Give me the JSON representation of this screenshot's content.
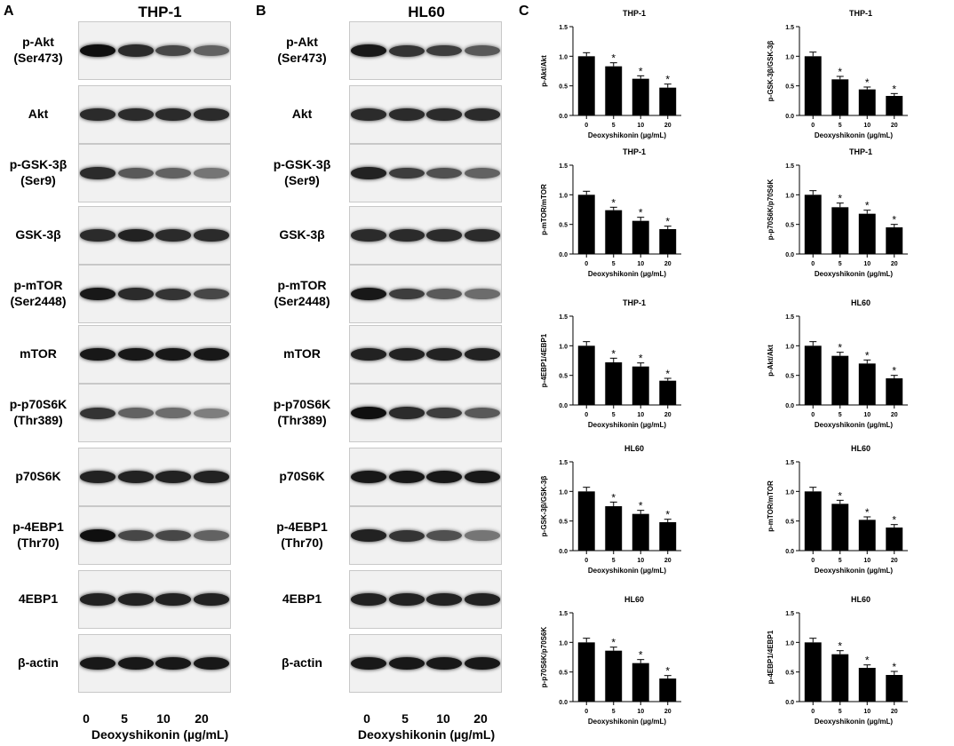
{
  "panels": {
    "a": {
      "letter": "A",
      "title": "THP-1"
    },
    "b": {
      "letter": "B",
      "title": "HL60"
    },
    "c": {
      "letter": "C"
    }
  },
  "blots": {
    "lanes": [
      "0",
      "5",
      "10",
      "20"
    ],
    "xlabel": "Deoxyshikonin (µg/mL)",
    "thp1": [
      {
        "label": "p-Akt\n(Ser473)",
        "intensity": [
          1.0,
          0.85,
          0.7,
          0.55
        ]
      },
      {
        "label": "Akt",
        "intensity": [
          0.85,
          0.85,
          0.85,
          0.85
        ]
      },
      {
        "label": "p-GSK-3β\n(Ser9)",
        "intensity": [
          0.85,
          0.6,
          0.55,
          0.45
        ]
      },
      {
        "label": "GSK-3β",
        "intensity": [
          0.85,
          0.9,
          0.85,
          0.85
        ]
      },
      {
        "label": "p-mTOR\n(Ser2448)",
        "intensity": [
          0.95,
          0.85,
          0.8,
          0.7
        ]
      },
      {
        "label": "mTOR",
        "intensity": [
          0.95,
          0.95,
          0.95,
          0.95
        ]
      },
      {
        "label": "p-p70S6K\n(Thr389)",
        "intensity": [
          0.8,
          0.55,
          0.5,
          0.4
        ]
      },
      {
        "label": "p70S6K",
        "intensity": [
          0.9,
          0.9,
          0.9,
          0.9
        ]
      },
      {
        "label": "p-4EBP1\n(Thr70)",
        "intensity": [
          1.0,
          0.7,
          0.7,
          0.55
        ]
      },
      {
        "label": "4EBP1",
        "intensity": [
          0.9,
          0.9,
          0.9,
          0.9
        ]
      },
      {
        "label": "β-actin",
        "intensity": [
          0.95,
          0.95,
          0.95,
          0.95
        ]
      }
    ],
    "hl60": [
      {
        "label": "p-Akt\n(Ser473)",
        "intensity": [
          0.95,
          0.8,
          0.75,
          0.6
        ]
      },
      {
        "label": "Akt",
        "intensity": [
          0.85,
          0.85,
          0.85,
          0.85
        ]
      },
      {
        "label": "p-GSK-3β\n(Ser9)",
        "intensity": [
          0.9,
          0.75,
          0.65,
          0.55
        ]
      },
      {
        "label": "GSK-3β",
        "intensity": [
          0.85,
          0.85,
          0.85,
          0.85
        ]
      },
      {
        "label": "p-mTOR\n(Ser2448)",
        "intensity": [
          0.95,
          0.75,
          0.6,
          0.5
        ]
      },
      {
        "label": "mTOR",
        "intensity": [
          0.9,
          0.9,
          0.9,
          0.9
        ]
      },
      {
        "label": "p-p70S6K\n(Thr389)",
        "intensity": [
          1.0,
          0.85,
          0.75,
          0.6
        ]
      },
      {
        "label": "p70S6K",
        "intensity": [
          0.95,
          0.95,
          0.95,
          0.95
        ]
      },
      {
        "label": "p-4EBP1\n(Thr70)",
        "intensity": [
          0.9,
          0.8,
          0.65,
          0.45
        ]
      },
      {
        "label": "4EBP1",
        "intensity": [
          0.9,
          0.9,
          0.9,
          0.9
        ]
      },
      {
        "label": "β-actin",
        "intensity": [
          0.95,
          0.95,
          0.95,
          0.95
        ]
      }
    ]
  },
  "chart_data": [
    {
      "type": "bar",
      "title": "THP-1",
      "ylabel": "p-Akt/Akt",
      "xlabel": "Deoxyshikonin (µg/mL)",
      "categories": [
        "0",
        "5",
        "10",
        "20"
      ],
      "values": [
        1.0,
        0.83,
        0.62,
        0.47
      ],
      "errors": [
        0.06,
        0.06,
        0.05,
        0.06
      ],
      "significant": [
        false,
        true,
        true,
        true
      ],
      "ylim": [
        0,
        1.5
      ],
      "yticks": [
        "0.0",
        "0.5",
        "1.0",
        "1.5"
      ]
    },
    {
      "type": "bar",
      "title": "THP-1",
      "ylabel": "p-GSK-3β/GSK-3β",
      "xlabel": "Deoxyshikonin (µg/mL)",
      "categories": [
        "0",
        "5",
        "10",
        "20"
      ],
      "values": [
        1.0,
        0.61,
        0.44,
        0.33
      ],
      "errors": [
        0.07,
        0.05,
        0.04,
        0.04
      ],
      "significant": [
        false,
        true,
        true,
        true
      ],
      "ylim": [
        0,
        1.5
      ],
      "yticks": [
        "0.0",
        "0.5",
        "1.0",
        "1.5"
      ]
    },
    {
      "type": "bar",
      "title": "THP-1",
      "ylabel": "p-mTOR/mTOR",
      "xlabel": "Deoxyshikonin (µg/mL)",
      "categories": [
        "0",
        "5",
        "10",
        "20"
      ],
      "values": [
        1.0,
        0.74,
        0.56,
        0.42
      ],
      "errors": [
        0.06,
        0.05,
        0.06,
        0.05
      ],
      "significant": [
        false,
        true,
        true,
        true
      ],
      "ylim": [
        0,
        1.5
      ],
      "yticks": [
        "0.0",
        "0.5",
        "1.0",
        "1.5"
      ]
    },
    {
      "type": "bar",
      "title": "THP-1",
      "ylabel": "p-p70S6K/p70S6K",
      "xlabel": "Deoxyshikonin (µg/mL)",
      "categories": [
        "0",
        "5",
        "10",
        "20"
      ],
      "values": [
        1.0,
        0.79,
        0.68,
        0.45
      ],
      "errors": [
        0.07,
        0.07,
        0.06,
        0.05
      ],
      "significant": [
        false,
        true,
        true,
        true
      ],
      "ylim": [
        0,
        1.5
      ],
      "yticks": [
        "0.0",
        "0.5",
        "1.0",
        "1.5"
      ]
    },
    {
      "type": "bar",
      "title": "THP-1",
      "ylabel": "p-4EBP1/4EBP1",
      "xlabel": "Deoxyshikonin (µg/mL)",
      "categories": [
        "0",
        "5",
        "10",
        "20"
      ],
      "values": [
        1.0,
        0.72,
        0.65,
        0.41
      ],
      "errors": [
        0.07,
        0.07,
        0.06,
        0.04
      ],
      "significant": [
        false,
        true,
        true,
        true
      ],
      "ylim": [
        0,
        1.5
      ],
      "yticks": [
        "0.0",
        "0.5",
        "1.0",
        "1.5"
      ]
    },
    {
      "type": "bar",
      "title": "HL60",
      "ylabel": "p-Akt/Akt",
      "xlabel": "Deoxyshikonin (µg/mL)",
      "categories": [
        "0",
        "5",
        "10",
        "20"
      ],
      "values": [
        1.0,
        0.83,
        0.7,
        0.45
      ],
      "errors": [
        0.07,
        0.06,
        0.06,
        0.05
      ],
      "significant": [
        false,
        true,
        true,
        true
      ],
      "ylim": [
        0,
        1.5
      ],
      "yticks": [
        "0.0",
        "0.5",
        "1.0",
        "1.5"
      ]
    },
    {
      "type": "bar",
      "title": "HL60",
      "ylabel": "p-GSK-3β/GSK-3β",
      "xlabel": "Deoxyshikonin (µg/mL)",
      "categories": [
        "0",
        "5",
        "10",
        "20"
      ],
      "values": [
        1.0,
        0.75,
        0.62,
        0.48
      ],
      "errors": [
        0.07,
        0.07,
        0.06,
        0.05
      ],
      "significant": [
        false,
        true,
        true,
        true
      ],
      "ylim": [
        0,
        1.5
      ],
      "yticks": [
        "0.0",
        "0.5",
        "1.0",
        "1.5"
      ]
    },
    {
      "type": "bar",
      "title": "HL60",
      "ylabel": "p-mTOR/mTOR",
      "xlabel": "Deoxyshikonin (µg/mL)",
      "categories": [
        "0",
        "5",
        "10",
        "20"
      ],
      "values": [
        1.0,
        0.79,
        0.52,
        0.39
      ],
      "errors": [
        0.07,
        0.06,
        0.05,
        0.05
      ],
      "significant": [
        false,
        true,
        true,
        true
      ],
      "ylim": [
        0,
        1.5
      ],
      "yticks": [
        "0.0",
        "0.5",
        "1.0",
        "1.5"
      ]
    },
    {
      "type": "bar",
      "title": "HL60",
      "ylabel": "p-p70S6K/p70S6K",
      "xlabel": "Deoxyshikonin (µg/mL)",
      "categories": [
        "0",
        "5",
        "10",
        "20"
      ],
      "values": [
        1.0,
        0.86,
        0.65,
        0.39
      ],
      "errors": [
        0.07,
        0.06,
        0.06,
        0.05
      ],
      "significant": [
        false,
        true,
        true,
        true
      ],
      "ylim": [
        0,
        1.5
      ],
      "yticks": [
        "0.0",
        "0.5",
        "1.0",
        "1.5"
      ]
    },
    {
      "type": "bar",
      "title": "HL60",
      "ylabel": "p-4EBP1/4EBP1",
      "xlabel": "Deoxyshikonin (µg/mL)",
      "categories": [
        "0",
        "5",
        "10",
        "20"
      ],
      "values": [
        1.0,
        0.8,
        0.57,
        0.45
      ],
      "errors": [
        0.07,
        0.06,
        0.05,
        0.06
      ],
      "significant": [
        false,
        true,
        true,
        true
      ],
      "ylim": [
        0,
        1.5
      ],
      "yticks": [
        "0.0",
        "0.5",
        "1.0",
        "1.5"
      ]
    }
  ]
}
